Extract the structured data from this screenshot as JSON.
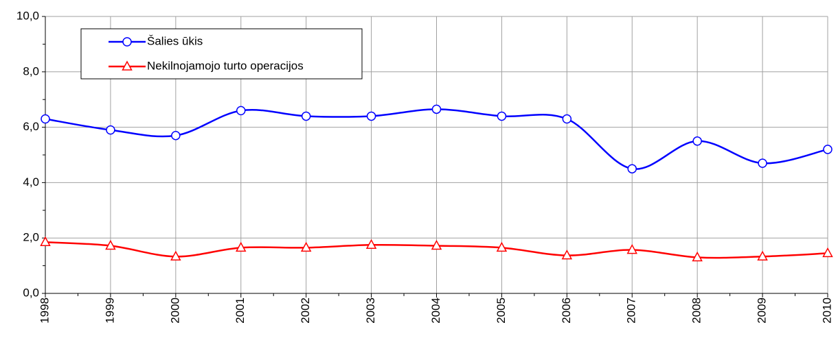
{
  "chart_data": {
    "type": "line",
    "categories": [
      "1998",
      "1999",
      "2000",
      "2001",
      "2002",
      "2003",
      "2004",
      "2005",
      "2006",
      "2007",
      "2008",
      "2009",
      "2010"
    ],
    "series": [
      {
        "name": "Šalies ūkis",
        "color": "#0000ff",
        "marker": "circle",
        "values": [
          6.3,
          5.9,
          5.7,
          6.6,
          6.4,
          6.4,
          6.65,
          6.4,
          6.3,
          4.5,
          5.5,
          4.7,
          5.2
        ]
      },
      {
        "name": "Nekilnojamojo turto operacijos",
        "color": "#ff0000",
        "marker": "triangle",
        "values": [
          1.85,
          1.72,
          1.33,
          1.65,
          1.65,
          1.75,
          1.72,
          1.65,
          1.37,
          1.57,
          1.3,
          1.33,
          1.45
        ]
      }
    ],
    "ylim": [
      0,
      10
    ],
    "yticks": [
      {
        "value": 0,
        "label": "0,0"
      },
      {
        "value": 2,
        "label": "2,0"
      },
      {
        "value": 4,
        "label": "4,0"
      },
      {
        "value": 6,
        "label": "6,0"
      },
      {
        "value": 8,
        "label": "8,0"
      },
      {
        "value": 10,
        "label": "10,0"
      }
    ],
    "minor_yticks": [
      1,
      3,
      5,
      7,
      9
    ],
    "grid": true,
    "smooth": true,
    "legend": "upper left"
  }
}
